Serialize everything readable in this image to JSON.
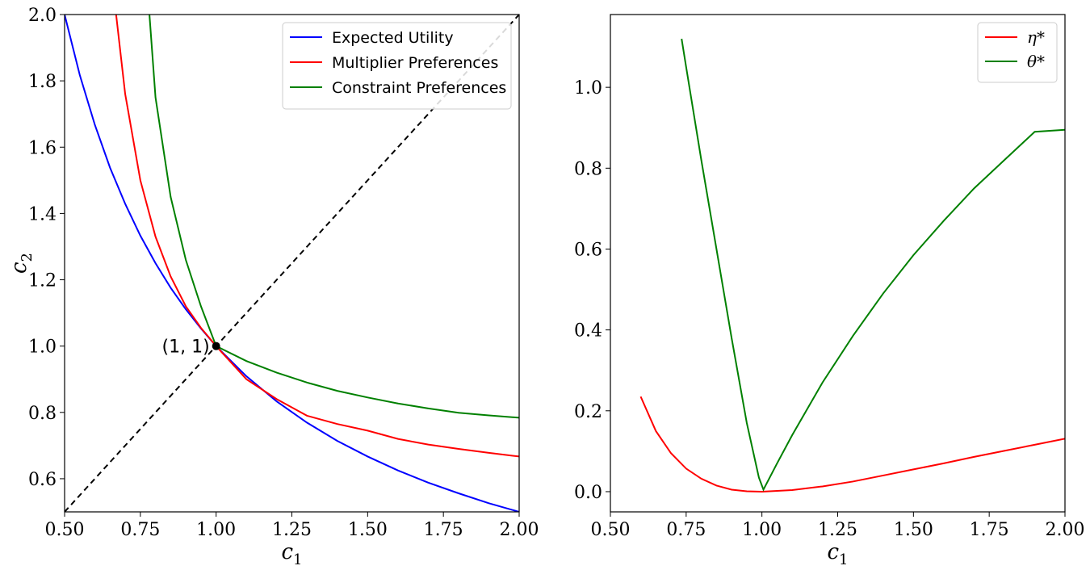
{
  "chart_data": [
    {
      "type": "line",
      "xlabel": "c_1",
      "ylabel": "c_2",
      "xlim": [
        0.5,
        2.0
      ],
      "ylim": [
        0.5,
        2.0
      ],
      "xticks": [
        "0.50",
        "0.75",
        "1.00",
        "1.25",
        "1.50",
        "1.75",
        "2.00"
      ],
      "yticks": [
        "0.6",
        "0.8",
        "1.0",
        "1.2",
        "1.4",
        "1.6",
        "1.8",
        "2.0"
      ],
      "grid": false,
      "legend_position": "top-right",
      "series": [
        {
          "name": "Expected Utility",
          "color": "#0000ff",
          "x": [
            0.5,
            0.55,
            0.6,
            0.65,
            0.7,
            0.75,
            0.8,
            0.85,
            0.9,
            0.95,
            1.0,
            1.1,
            1.2,
            1.3,
            1.4,
            1.5,
            1.6,
            1.7,
            1.8,
            1.9,
            2.0
          ],
          "y": [
            2.0,
            1.818,
            1.667,
            1.538,
            1.429,
            1.333,
            1.25,
            1.176,
            1.111,
            1.053,
            1.0,
            0.909,
            0.833,
            0.769,
            0.714,
            0.667,
            0.625,
            0.588,
            0.556,
            0.526,
            0.5
          ]
        },
        {
          "name": "Multiplier Preferences",
          "color": "#ff0000",
          "x": [
            0.67,
            0.7,
            0.75,
            0.8,
            0.85,
            0.9,
            0.95,
            1.0,
            1.1,
            1.2,
            1.3,
            1.4,
            1.5,
            1.6,
            1.7,
            1.8,
            1.9,
            2.0
          ],
          "y": [
            2.0,
            1.76,
            1.5,
            1.33,
            1.21,
            1.12,
            1.055,
            1.0,
            0.9,
            0.84,
            0.79,
            0.765,
            0.745,
            0.72,
            0.703,
            0.69,
            0.678,
            0.667
          ]
        },
        {
          "name": "Constraint Preferences",
          "color": "#008000",
          "x": [
            0.78,
            0.8,
            0.85,
            0.9,
            0.95,
            1.0,
            1.1,
            1.2,
            1.3,
            1.4,
            1.5,
            1.6,
            1.7,
            1.8,
            1.9,
            2.0
          ],
          "y": [
            2.0,
            1.75,
            1.45,
            1.26,
            1.12,
            1.0,
            0.955,
            0.92,
            0.89,
            0.865,
            0.845,
            0.827,
            0.812,
            0.799,
            0.791,
            0.784
          ]
        },
        {
          "name": "",
          "color": "#000000",
          "dash": true,
          "x": [
            0.5,
            2.0
          ],
          "y": [
            0.5,
            2.0
          ]
        }
      ],
      "annotations": [
        {
          "text": "(1, 1)",
          "x": 1.0,
          "y": 1.0
        }
      ]
    },
    {
      "type": "line",
      "xlabel": "c_1",
      "ylabel": "",
      "xlim": [
        0.5,
        2.0
      ],
      "ylim": [
        -0.05,
        1.18
      ],
      "xticks": [
        "0.50",
        "0.75",
        "1.00",
        "1.25",
        "1.50",
        "1.75",
        "2.00"
      ],
      "yticks": [
        "0.0",
        "0.2",
        "0.4",
        "0.6",
        "0.8",
        "1.0"
      ],
      "grid": false,
      "legend_position": "top-right",
      "series": [
        {
          "name": "η*",
          "color": "#ff0000",
          "x": [
            0.6,
            0.65,
            0.7,
            0.75,
            0.8,
            0.85,
            0.9,
            0.95,
            1.0,
            1.1,
            1.2,
            1.3,
            1.4,
            1.5,
            1.6,
            1.7,
            1.8,
            1.9,
            2.0
          ],
          "y": [
            0.235,
            0.15,
            0.095,
            0.057,
            0.032,
            0.015,
            0.005,
            0.001,
            0.0,
            0.004,
            0.013,
            0.025,
            0.04,
            0.055,
            0.07,
            0.086,
            0.101,
            0.116,
            0.131
          ]
        },
        {
          "name": "θ*",
          "color": "#008000",
          "x": [
            0.735,
            0.75,
            0.8,
            0.85,
            0.9,
            0.95,
            0.99,
            1.005,
            1.05,
            1.1,
            1.2,
            1.3,
            1.4,
            1.5,
            1.6,
            1.7,
            1.8,
            1.9,
            2.0
          ],
          "y": [
            1.12,
            1.05,
            0.82,
            0.6,
            0.38,
            0.17,
            0.035,
            0.005,
            0.07,
            0.14,
            0.27,
            0.385,
            0.49,
            0.585,
            0.67,
            0.75,
            0.82,
            0.89,
            0.895
          ]
        }
      ]
    }
  ]
}
